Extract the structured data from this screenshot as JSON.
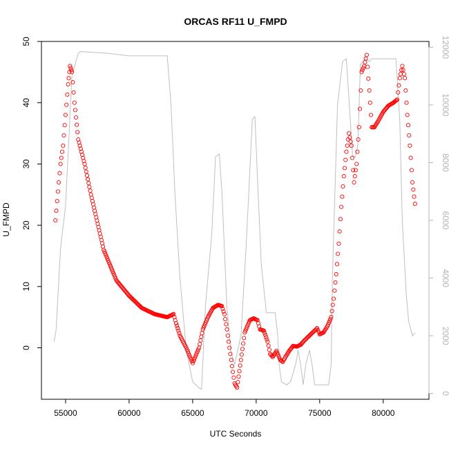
{
  "chart_data": {
    "type": "scatter",
    "title": "ORCAS RF11 U_FMPD",
    "xlabel": "UTC Seconds",
    "ylabel": "U_FMPD",
    "xlim": [
      53100,
      83600
    ],
    "ylim": [
      -8.4,
      50
    ],
    "y2lim": [
      -200,
      12200
    ],
    "x_ticks": [
      55000,
      60000,
      65000,
      70000,
      75000,
      80000
    ],
    "x_tick_labels": [
      "55000",
      "60000",
      "65000",
      "70000",
      "75000",
      "80000"
    ],
    "y_ticks": [
      0,
      10,
      20,
      30,
      40,
      50
    ],
    "y_tick_labels": [
      "0",
      "10",
      "20",
      "30",
      "40",
      "50"
    ],
    "y2_ticks": [
      0,
      2000,
      4000,
      6000,
      8000,
      10000,
      12000
    ],
    "y2_tick_labels": [
      "0",
      "2000",
      "4000",
      "6000",
      "8000",
      "10000",
      "12000"
    ],
    "grid": false,
    "colors": {
      "points": "#ff0000",
      "secondary_line": "#bebebe",
      "right_axis": "#b3b3b3"
    },
    "series": [
      {
        "marker": "open-circle",
        "axis": "left",
        "x": [
          54200,
          54400,
          54600,
          54800,
          55000,
          55200,
          55350,
          55500,
          55700,
          56000,
          56500,
          57000,
          58000,
          59000,
          60000,
          61000,
          62000,
          63000,
          63500,
          63700,
          64000,
          64500,
          65000,
          65500,
          65800,
          66200,
          66600,
          67000,
          67300,
          67500,
          67700,
          67900,
          68100,
          68300,
          68500,
          68800,
          69100,
          69500,
          69800,
          70100,
          70300,
          70600,
          70900,
          71100,
          71300,
          71600,
          71900,
          72100,
          72300,
          72600,
          72900,
          73200,
          73500,
          73800,
          74000,
          74300,
          74600,
          74800,
          75000,
          75300,
          75600,
          75900,
          76100,
          76300,
          76500,
          76700,
          76900,
          77100,
          77300,
          77500,
          77700,
          77900,
          78100,
          78300,
          78500,
          78700,
          78900,
          79100,
          79300,
          79600,
          80000,
          80400,
          80800,
          81100,
          81300,
          81500,
          81700,
          81900,
          82100,
          82300,
          82500
        ],
        "y": [
          20.8,
          25.5,
          30,
          33,
          38,
          43,
          46,
          45,
          40,
          34,
          30,
          25,
          16,
          11,
          8.5,
          6.5,
          5.5,
          5,
          5.5,
          4,
          2,
          0,
          -2.5,
          0,
          3,
          5,
          6.5,
          7,
          6.8,
          5.5,
          3,
          0,
          -3,
          -5.8,
          -6.5,
          -2,
          2.5,
          4.5,
          4.8,
          4.5,
          3,
          2.8,
          1,
          -1,
          -1.5,
          -0.5,
          -2,
          -2.3,
          -1.5,
          -0.5,
          0.3,
          0.2,
          0.5,
          1.2,
          1.6,
          2.2,
          2.8,
          3.2,
          2.2,
          2.5,
          3.5,
          5,
          8,
          12,
          17,
          23,
          28,
          32,
          35,
          33,
          27,
          30,
          36,
          45,
          46,
          47.8,
          42,
          36,
          36,
          37,
          38.5,
          39.5,
          40,
          40.5,
          44,
          46,
          44,
          38,
          33,
          27,
          23.5
        ]
      },
      {
        "marker": "line",
        "axis": "right",
        "x": [
          54100,
          54250,
          54600,
          54700,
          55000,
          55500,
          56000,
          56200,
          58000,
          58500,
          60000,
          63000,
          63300,
          63600,
          64000,
          64500,
          65000,
          65500,
          65700,
          66000,
          66500,
          66800,
          67100,
          67300,
          67700,
          68000,
          68300,
          68800,
          69200,
          69700,
          69900,
          70100,
          70400,
          70800,
          71200,
          71500,
          71700,
          71800,
          72000,
          72400,
          72700,
          73100,
          73300,
          73500,
          73700,
          73900,
          74200,
          74400,
          74600,
          74900,
          75300,
          75700,
          75900,
          76000,
          76400,
          76800,
          77100,
          77600,
          77800,
          78000,
          78200,
          78400,
          78600,
          78900,
          79100,
          79600,
          80000,
          81000,
          81300,
          81500,
          81800,
          82000,
          82300,
          82500
        ],
        "y": [
          1800,
          2200,
          5000,
          5400,
          6500,
          11000,
          11800,
          11850,
          11800,
          11780,
          11700,
          11700,
          10000,
          7000,
          4000,
          1500,
          400,
          200,
          150,
          3000,
          5500,
          8200,
          8300,
          7000,
          3000,
          1500,
          1000,
          2000,
          5000,
          9500,
          9600,
          7500,
          4500,
          2800,
          2800,
          2800,
          2000,
          1000,
          400,
          300,
          400,
          1000,
          1500,
          1000,
          300,
          1000,
          1500,
          1000,
          300,
          300,
          300,
          300,
          1000,
          4000,
          10000,
          11500,
          11600,
          8200,
          8200,
          8600,
          11400,
          11500,
          11600,
          11500,
          11600,
          11600,
          11600,
          11600,
          9500,
          6000,
          3500,
          2500,
          2000,
          2100
        ]
      }
    ]
  }
}
